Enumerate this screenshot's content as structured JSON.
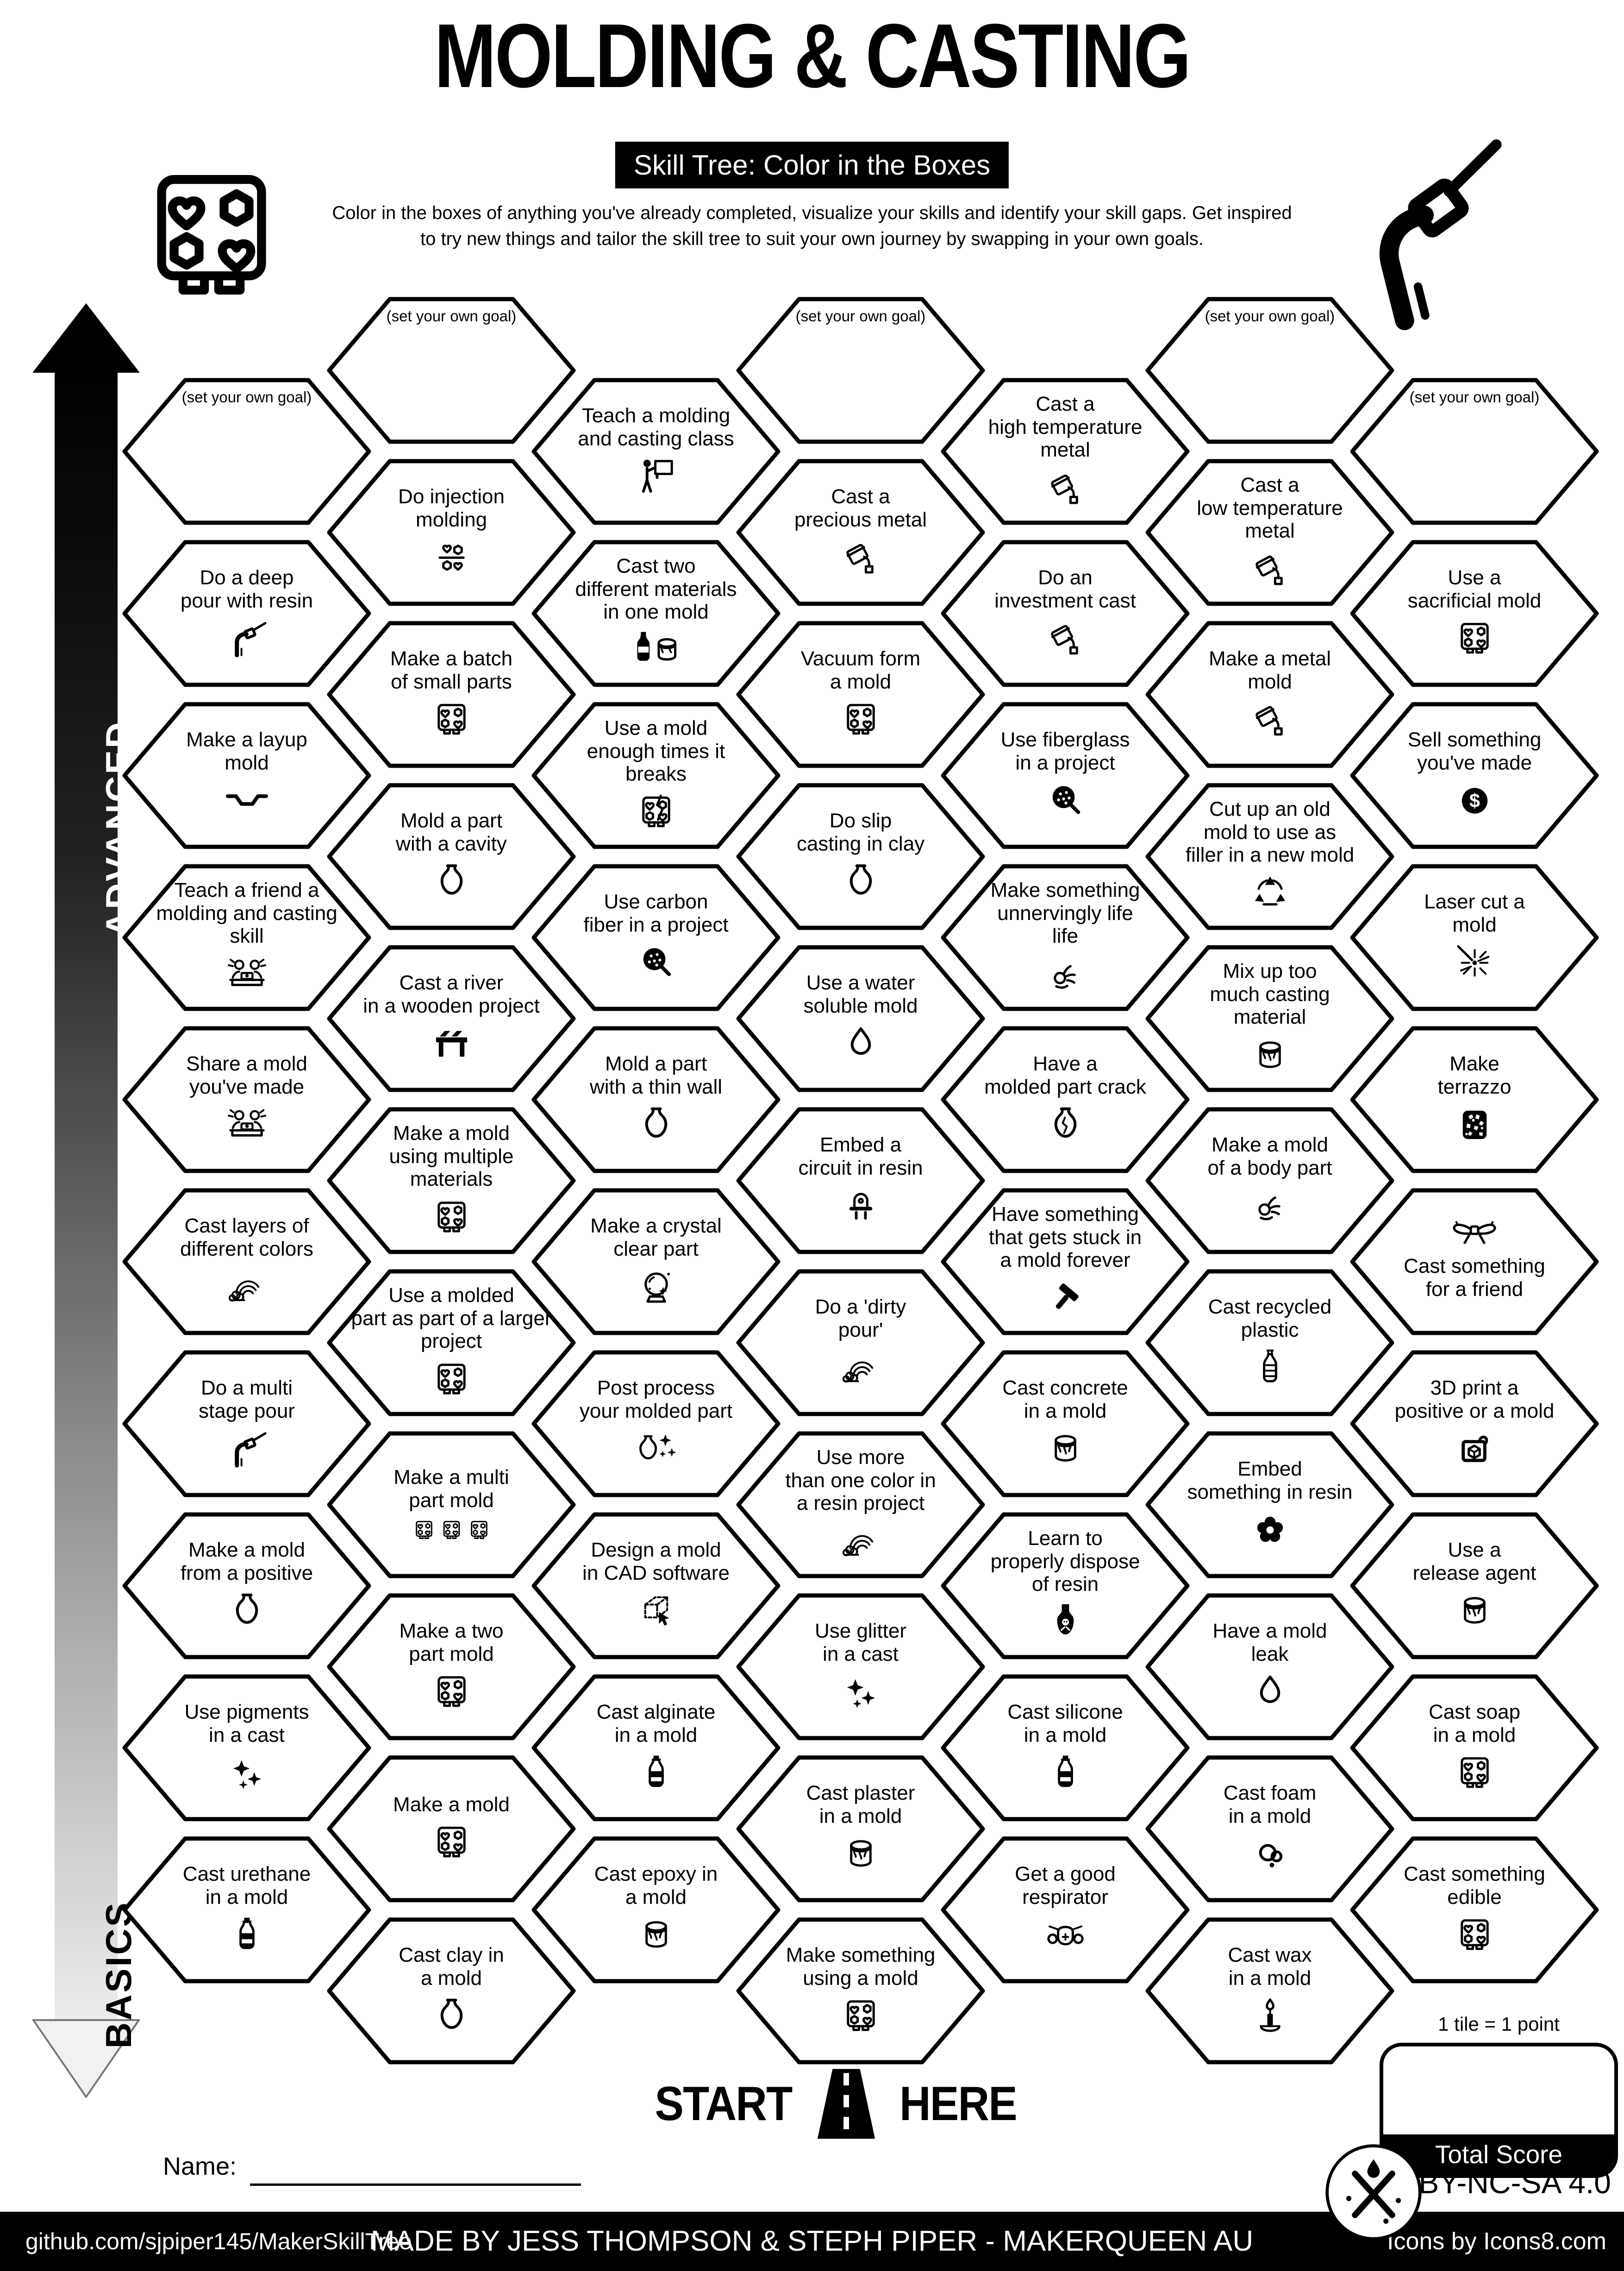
{
  "header": {
    "title": "MOLDING & CASTING",
    "subtitle": "Skill Tree: Color in the Boxes",
    "description": "Color in the boxes of anything you've already completed, visualize your skills and identify your skill gaps.  Get inspired\nto try new things and tailor the skill tree to suit your own journey by swapping in your own goals.",
    "top_left_icon": "mold-tray-icon",
    "top_right_icon": "deep-pour-icon"
  },
  "axis": {
    "top_label": "ADVANCED",
    "bottom_label": "BASICS"
  },
  "start": {
    "start_label": "START",
    "here_label": "HERE",
    "road_icon": "road-icon"
  },
  "name_field": {
    "label": "Name:"
  },
  "legend": {
    "tile_points": "1 tile = 1 point",
    "total_score_label": "Total Score"
  },
  "footer": {
    "repo": "github.com/sjpiper145/MakerSkillTree",
    "credit": "MADE BY JESS THOMPSON & STEPH PIPER  -  MAKERQUEEN AU",
    "license": "CC BY-NC-SA 4.0",
    "icons_credit": "Icons by Icons8.com",
    "badge_icon": "maker-tools-icon"
  },
  "colors": {
    "ink": "#000000",
    "paper": "#ffffff"
  },
  "tiles": [
    {
      "c": 1,
      "r": 0,
      "goal": true,
      "label": "(set your own goal)",
      "icon": "none"
    },
    {
      "c": 1,
      "r": 1,
      "label": "Do a deep\npour with resin",
      "icon": "deep-pour"
    },
    {
      "c": 1,
      "r": 2,
      "label": "Make a layup\nmold",
      "icon": "layup"
    },
    {
      "c": 1,
      "r": 3,
      "label": "Teach a friend a\nmolding and casting\nskill",
      "icon": "friends"
    },
    {
      "c": 1,
      "r": 4,
      "label": "Share a mold\nyou've made",
      "icon": "friends"
    },
    {
      "c": 1,
      "r": 5,
      "label": "Cast layers of\ndifferent colors",
      "icon": "rainbow"
    },
    {
      "c": 1,
      "r": 6,
      "label": "Do a multi\nstage pour",
      "icon": "deep-pour"
    },
    {
      "c": 1,
      "r": 7,
      "label": "Make a mold\nfrom a positive",
      "icon": "vase"
    },
    {
      "c": 1,
      "r": 8,
      "label": "Use pigments\nin a cast",
      "icon": "sparkles"
    },
    {
      "c": 1,
      "r": 9,
      "label": "Cast urethane\nin a mold",
      "icon": "bottle-dark"
    },
    {
      "c": 2,
      "r": 0,
      "goal": true,
      "label": "(set your own goal)",
      "icon": "none"
    },
    {
      "c": 2,
      "r": 1,
      "label": "Do injection\nmolding",
      "icon": "injection"
    },
    {
      "c": 2,
      "r": 2,
      "label": "Make a batch\nof small parts",
      "icon": "mold-tray"
    },
    {
      "c": 2,
      "r": 3,
      "label": "Mold a part\nwith a cavity",
      "icon": "vase"
    },
    {
      "c": 2,
      "r": 4,
      "label": "Cast a river\nin a wooden project",
      "icon": "river-table"
    },
    {
      "c": 2,
      "r": 5,
      "label": "Make a mold\nusing multiple\nmaterials",
      "icon": "mold-tray"
    },
    {
      "c": 2,
      "r": 6,
      "label": "Use a molded\npart as part of a larger\nproject",
      "icon": "mold-tray"
    },
    {
      "c": 2,
      "r": 7,
      "label": "Make a  multi\npart mold",
      "icon": "mold-tray-multi"
    },
    {
      "c": 2,
      "r": 8,
      "label": "Make a two\npart mold",
      "icon": "mold-tray"
    },
    {
      "c": 2,
      "r": 9,
      "label": "Make a mold",
      "icon": "mold-tray"
    },
    {
      "c": 2,
      "r": 10,
      "label": "Cast clay in\na mold",
      "icon": "vase"
    },
    {
      "c": 3,
      "r": 0,
      "label": "Teach a molding\nand casting class",
      "icon": "teacher"
    },
    {
      "c": 3,
      "r": 1,
      "label": "Cast two\ndifferent materials\nin one mold",
      "icon": "bottle-can"
    },
    {
      "c": 3,
      "r": 2,
      "label": "Use a mold\nenough times it\nbreaks",
      "icon": "mold-tray-broken"
    },
    {
      "c": 3,
      "r": 3,
      "label": "Use carbon\nfiber in a project",
      "icon": "fiber-lens"
    },
    {
      "c": 3,
      "r": 4,
      "label": "Mold a part\nwith a thin wall",
      "icon": "vase"
    },
    {
      "c": 3,
      "r": 5,
      "label": "Make a crystal\nclear part",
      "icon": "crystal-ball"
    },
    {
      "c": 3,
      "r": 6,
      "label": "Post process\nyour molded part",
      "icon": "vase-sparkle"
    },
    {
      "c": 3,
      "r": 7,
      "label": "Design a mold\nin CAD software",
      "icon": "cad-cube"
    },
    {
      "c": 3,
      "r": 8,
      "label": "Cast alginate\nin a mold",
      "icon": "bottle-dark"
    },
    {
      "c": 3,
      "r": 9,
      "label": "Cast epoxy in\na mold",
      "icon": "paint-can"
    },
    {
      "c": 4,
      "r": 0,
      "goal": true,
      "label": "(set your own goal)",
      "icon": "none"
    },
    {
      "c": 4,
      "r": 1,
      "label": "Cast a\nprecious metal",
      "icon": "pour-bucket"
    },
    {
      "c": 4,
      "r": 2,
      "label": "Vacuum form\na mold",
      "icon": "mold-tray"
    },
    {
      "c": 4,
      "r": 3,
      "label": "Do slip\ncasting in clay",
      "icon": "vase"
    },
    {
      "c": 4,
      "r": 4,
      "label": "Use a water\nsoluble mold",
      "icon": "droplet"
    },
    {
      "c": 4,
      "r": 5,
      "label": "Embed a\ncircuit in resin",
      "icon": "led"
    },
    {
      "c": 4,
      "r": 6,
      "label": "Do a 'dirty\npour'",
      "icon": "rainbow"
    },
    {
      "c": 4,
      "r": 7,
      "label": "Use more\nthan one color in\na resin project",
      "icon": "rainbow"
    },
    {
      "c": 4,
      "r": 8,
      "label": "Use glitter\nin a cast",
      "icon": "sparkles"
    },
    {
      "c": 4,
      "r": 9,
      "label": "Cast plaster\nin a mold",
      "icon": "paint-can"
    },
    {
      "c": 4,
      "r": 10,
      "label": "Make something\nusing a mold",
      "icon": "mold-tray"
    },
    {
      "c": 5,
      "r": 0,
      "label": "Cast a\nhigh temperature\nmetal",
      "icon": "pour-bucket"
    },
    {
      "c": 5,
      "r": 1,
      "label": "Do an\ninvestment cast",
      "icon": "pour-bucket"
    },
    {
      "c": 5,
      "r": 2,
      "label": "Use fiberglass\nin a project",
      "icon": "fiber-lens"
    },
    {
      "c": 5,
      "r": 3,
      "label": "Make something\nunnervingly life\nlife",
      "icon": "ok-hand"
    },
    {
      "c": 5,
      "r": 4,
      "label": "Have a\nmolded part crack",
      "icon": "vase-crack"
    },
    {
      "c": 5,
      "r": 5,
      "label": "Have something\nthat gets stuck in\na mold forever",
      "icon": "hammer"
    },
    {
      "c": 5,
      "r": 6,
      "label": "Cast concrete\nin a mold",
      "icon": "paint-can"
    },
    {
      "c": 5,
      "r": 7,
      "label": "Learn to\nproperly dispose\nof resin",
      "icon": "poison"
    },
    {
      "c": 5,
      "r": 8,
      "label": "Cast silicone\nin a mold",
      "icon": "bottle-dark"
    },
    {
      "c": 5,
      "r": 9,
      "label": "Get a good\nrespirator",
      "icon": "respirator"
    },
    {
      "c": 6,
      "r": 0,
      "goal": true,
      "label": "(set your own goal)",
      "icon": "none"
    },
    {
      "c": 6,
      "r": 1,
      "label": "Cast a\nlow temperature\nmetal",
      "icon": "pour-bucket"
    },
    {
      "c": 6,
      "r": 2,
      "label": "Make a metal\nmold",
      "icon": "pour-bucket"
    },
    {
      "c": 6,
      "r": 3,
      "label": "Cut up an old\nmold to use as\nfiller in a new mold",
      "icon": "recycle"
    },
    {
      "c": 6,
      "r": 4,
      "label": "Mix up too\nmuch casting\nmaterial",
      "icon": "paint-can"
    },
    {
      "c": 6,
      "r": 5,
      "label": "Make a mold\nof a body part",
      "icon": "ok-hand"
    },
    {
      "c": 6,
      "r": 6,
      "label": "Cast recycled\nplastic",
      "icon": "plastic-bottle"
    },
    {
      "c": 6,
      "r": 7,
      "label": "Embed\nsomething in resin",
      "icon": "flower"
    },
    {
      "c": 6,
      "r": 8,
      "label": "Have a mold\nleak",
      "icon": "droplet"
    },
    {
      "c": 6,
      "r": 9,
      "label": "Cast foam\nin a mold",
      "icon": "foam"
    },
    {
      "c": 6,
      "r": 10,
      "label": "Cast wax\nin a mold",
      "icon": "candle"
    },
    {
      "c": 7,
      "r": 0,
      "goal": true,
      "label": "(set your own goal)",
      "icon": "none"
    },
    {
      "c": 7,
      "r": 1,
      "label": "Use a\nsacrificial mold",
      "icon": "mold-tray"
    },
    {
      "c": 7,
      "r": 2,
      "label": "Sell something\nyou've made",
      "icon": "dollar"
    },
    {
      "c": 7,
      "r": 3,
      "label": "Laser cut a\nmold",
      "icon": "laser"
    },
    {
      "c": 7,
      "r": 4,
      "label": "Make\nterrazzo",
      "icon": "terrazzo"
    },
    {
      "c": 7,
      "r": 5,
      "label": "Cast something\nfor a friend",
      "icon": "bow",
      "icon_first": true
    },
    {
      "c": 7,
      "r": 6,
      "label": "3D print a\npositive or a mold",
      "icon": "printer3d"
    },
    {
      "c": 7,
      "r": 7,
      "label": "Use a\nrelease agent",
      "icon": "paint-can"
    },
    {
      "c": 7,
      "r": 8,
      "label": "Cast soap\nin a mold",
      "icon": "mold-tray"
    },
    {
      "c": 7,
      "r": 9,
      "label": "Cast something\nedible",
      "icon": "mold-tray"
    }
  ]
}
